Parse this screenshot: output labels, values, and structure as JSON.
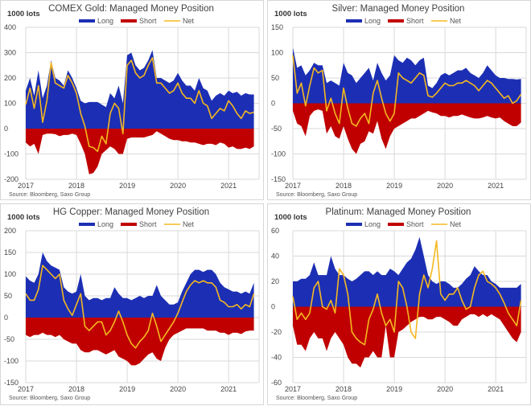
{
  "legend_colors": {
    "Long": "#1c2fb4",
    "Short": "#c00000",
    "Net": "#f5b820"
  },
  "chart_data": [
    {
      "type": "area",
      "title": "COMEX Gold: Managed Money Position",
      "ylabel": "1000 lots",
      "xlabel": "",
      "ylim": [
        -200,
        400
      ],
      "yticks": [
        400,
        300,
        200,
        100,
        0,
        -100,
        -200
      ],
      "xlim": [
        2017.0,
        2021.6
      ],
      "xticks": [
        "2017",
        "2018",
        "2019",
        "2020",
        "2021"
      ],
      "legend": [
        "Long",
        "Short",
        "Net"
      ],
      "legend_position": "top-center",
      "grid": true,
      "source": "Source: Bloomberg, Saxo Group",
      "start": 2017.0,
      "step": 0.0833,
      "series": [
        {
          "name": "Long",
          "values": [
            150,
            200,
            130,
            230,
            120,
            170,
            270,
            200,
            190,
            170,
            230,
            200,
            160,
            110,
            100,
            105,
            105,
            105,
            95,
            85,
            140,
            120,
            170,
            100,
            290,
            300,
            250,
            230,
            240,
            270,
            310,
            200,
            200,
            190,
            180,
            190,
            220,
            190,
            170,
            170,
            150,
            200,
            160,
            150,
            110,
            130,
            140,
            130,
            150,
            140,
            145,
            130,
            140,
            135,
            135
          ]
        },
        {
          "name": "Short",
          "values": [
            -55,
            -70,
            -60,
            -100,
            -25,
            -20,
            -20,
            -22,
            -30,
            -25,
            -25,
            -20,
            -25,
            -60,
            -100,
            -180,
            -175,
            -150,
            -100,
            -85,
            -70,
            -80,
            -100,
            -100,
            -40,
            -35,
            -35,
            -35,
            -35,
            -30,
            -25,
            -10,
            -20,
            -30,
            -40,
            -45,
            -45,
            -50,
            -50,
            -55,
            -55,
            -60,
            -65,
            -60,
            -60,
            -65,
            -55,
            -60,
            -75,
            -70,
            -80,
            -80,
            -75,
            -80,
            -70
          ]
        },
        {
          "name": "Net",
          "values": [
            95,
            160,
            80,
            170,
            25,
            110,
            260,
            180,
            170,
            160,
            210,
            180,
            140,
            60,
            10,
            -70,
            -75,
            -90,
            -30,
            -60,
            60,
            100,
            80,
            -20,
            250,
            270,
            220,
            200,
            210,
            250,
            280,
            180,
            180,
            160,
            140,
            150,
            180,
            140,
            120,
            120,
            100,
            150,
            100,
            90,
            40,
            60,
            80,
            70,
            110,
            90,
            60,
            40,
            70,
            60,
            65
          ]
        }
      ]
    },
    {
      "type": "area",
      "title": "Silver: Managed Money Position",
      "ylabel": "1000 lots",
      "xlabel": "",
      "ylim": [
        -150,
        150
      ],
      "yticks": [
        150,
        100,
        50,
        0,
        -50,
        -100,
        -150
      ],
      "xlim": [
        2017.0,
        2021.6
      ],
      "xticks": [
        "2017",
        "2018",
        "2019",
        "2020",
        "2021"
      ],
      "legend": [
        "Long",
        "Short",
        "Net"
      ],
      "legend_position": "top-center",
      "grid": true,
      "source": "Source: Bloomberg, Saxo Group",
      "start": 2017.0,
      "step": 0.0833,
      "series": [
        {
          "name": "Long",
          "values": [
            110,
            70,
            75,
            55,
            65,
            80,
            75,
            75,
            40,
            45,
            40,
            35,
            80,
            60,
            55,
            40,
            50,
            60,
            70,
            45,
            80,
            60,
            45,
            55,
            95,
            85,
            80,
            90,
            85,
            75,
            85,
            90,
            35,
            30,
            40,
            55,
            60,
            55,
            60,
            65,
            65,
            70,
            60,
            55,
            50,
            60,
            75,
            65,
            55,
            50,
            50,
            48,
            48,
            47,
            48
          ]
        },
        {
          "name": "Short",
          "values": [
            -15,
            -40,
            -45,
            -65,
            -25,
            -15,
            -12,
            -15,
            -60,
            -45,
            -65,
            -70,
            -45,
            -70,
            -90,
            -100,
            -80,
            -75,
            -55,
            -60,
            -35,
            -70,
            -90,
            -65,
            -50,
            -45,
            -40,
            -35,
            -30,
            -30,
            -25,
            -20,
            -15,
            -18,
            -20,
            -25,
            -25,
            -28,
            -25,
            -25,
            -22,
            -25,
            -28,
            -30,
            -30,
            -28,
            -25,
            -28,
            -30,
            -28,
            -35,
            -40,
            -45,
            -45,
            -38
          ]
        },
        {
          "name": "Net",
          "values": [
            95,
            20,
            40,
            -5,
            35,
            70,
            60,
            65,
            -15,
            10,
            -20,
            -40,
            30,
            -10,
            -40,
            -45,
            -30,
            -20,
            -40,
            20,
            45,
            10,
            -20,
            -35,
            -20,
            60,
            50,
            45,
            40,
            50,
            60,
            55,
            15,
            12,
            20,
            30,
            40,
            35,
            35,
            40,
            40,
            45,
            40,
            35,
            25,
            35,
            45,
            40,
            30,
            20,
            10,
            15,
            0,
            5,
            18
          ]
        }
      ]
    },
    {
      "type": "area",
      "title": "HG Copper: Managed Money Position",
      "ylabel": "1000 lots",
      "xlabel": "",
      "ylim": [
        -150,
        200
      ],
      "yticks": [
        200,
        150,
        100,
        50,
        0,
        -50,
        -100,
        -150
      ],
      "xlim": [
        2017.0,
        2021.6
      ],
      "xticks": [
        "2017",
        "2018",
        "2019",
        "2020",
        "2021"
      ],
      "legend": [
        "Long",
        "Short",
        "Net"
      ],
      "legend_position": "top-center",
      "grid": true,
      "source": "Source: Bloomberg, Saxo Group",
      "start": 2017.0,
      "step": 0.0833,
      "series": [
        {
          "name": "Long",
          "values": [
            95,
            85,
            80,
            100,
            150,
            130,
            120,
            115,
            110,
            70,
            60,
            55,
            60,
            100,
            50,
            40,
            45,
            45,
            40,
            45,
            45,
            70,
            55,
            45,
            45,
            40,
            45,
            50,
            45,
            50,
            50,
            75,
            50,
            40,
            30,
            30,
            35,
            60,
            80,
            100,
            110,
            110,
            105,
            110,
            110,
            100,
            80,
            70,
            65,
            60,
            60,
            55,
            60,
            55,
            80
          ]
        },
        {
          "name": "Short",
          "values": [
            -40,
            -45,
            -40,
            -40,
            -35,
            -40,
            -40,
            -45,
            -40,
            -50,
            -55,
            -60,
            -60,
            -75,
            -80,
            -80,
            -75,
            -75,
            -80,
            -85,
            -80,
            -75,
            -90,
            -95,
            -100,
            -110,
            -110,
            -105,
            -95,
            -85,
            -80,
            -95,
            -100,
            -70,
            -50,
            -40,
            -35,
            -30,
            -25,
            -25,
            -25,
            -25,
            -25,
            -30,
            -30,
            -30,
            -35,
            -35,
            -40,
            -35,
            -35,
            -38,
            -32,
            -30,
            -30
          ]
        },
        {
          "name": "Net",
          "values": [
            55,
            40,
            40,
            65,
            120,
            110,
            100,
            90,
            100,
            40,
            20,
            5,
            30,
            55,
            -20,
            -30,
            -20,
            -10,
            -10,
            -40,
            -30,
            -10,
            15,
            -10,
            -40,
            -60,
            -70,
            -55,
            -45,
            -30,
            10,
            -20,
            -55,
            -40,
            -25,
            -10,
            10,
            35,
            60,
            75,
            85,
            80,
            85,
            80,
            80,
            70,
            40,
            35,
            25,
            25,
            30,
            20,
            30,
            25,
            55
          ]
        }
      ]
    },
    {
      "type": "area",
      "title": "Platinum: Managed Money Position",
      "ylabel": "1000 lots",
      "xlabel": "",
      "ylim": [
        -60,
        60
      ],
      "yticks": [
        60,
        40,
        20,
        0,
        -20,
        -40,
        -60
      ],
      "xlim": [
        2017.0,
        2021.6
      ],
      "xticks": [
        "2017",
        "2018",
        "2019",
        "2020",
        "2021"
      ],
      "legend": [
        "Long",
        "Short",
        "Net"
      ],
      "legend_position": "top-center",
      "grid": true,
      "source": "Source: Bloomberg, Saxo Group",
      "start": 2017.0,
      "step": 0.0833,
      "series": [
        {
          "name": "Long",
          "values": [
            20,
            20,
            22,
            22,
            25,
            35,
            25,
            25,
            25,
            40,
            30,
            25,
            25,
            22,
            20,
            22,
            25,
            28,
            28,
            25,
            28,
            25,
            25,
            30,
            28,
            25,
            30,
            35,
            38,
            45,
            55,
            40,
            25,
            20,
            18,
            20,
            20,
            18,
            15,
            15,
            18,
            22,
            25,
            32,
            28,
            25,
            25,
            20,
            18,
            15,
            15,
            15,
            15,
            15,
            18
          ]
        },
        {
          "name": "Short",
          "values": [
            -15,
            -30,
            -30,
            -35,
            -25,
            -20,
            -25,
            -25,
            -35,
            -25,
            -20,
            -25,
            -30,
            -40,
            -45,
            -45,
            -48,
            -40,
            -40,
            -35,
            -40,
            -40,
            -15,
            -40,
            -40,
            -20,
            -18,
            -15,
            -12,
            -10,
            -8,
            -8,
            -10,
            -10,
            -8,
            -8,
            -10,
            -12,
            -15,
            -15,
            -10,
            -8,
            -6,
            -6,
            -8,
            -6,
            -8,
            -6,
            -8,
            -10,
            -15,
            -20,
            -25,
            -28,
            -20
          ]
        },
        {
          "name": "Net",
          "values": [
            8,
            -10,
            -5,
            -10,
            -5,
            15,
            20,
            0,
            -2,
            5,
            -5,
            30,
            25,
            10,
            -20,
            -25,
            -28,
            -30,
            -10,
            -2,
            10,
            -5,
            -15,
            -10,
            -20,
            20,
            15,
            0,
            -20,
            -25,
            10,
            25,
            15,
            30,
            52,
            10,
            5,
            10,
            10,
            15,
            5,
            -2,
            0,
            15,
            25,
            28,
            20,
            18,
            15,
            10,
            3,
            -5,
            -10,
            -15,
            5
          ]
        }
      ]
    }
  ]
}
